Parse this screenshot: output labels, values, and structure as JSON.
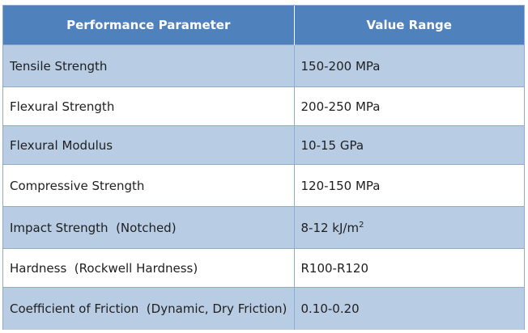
{
  "table": {
    "headers": {
      "parameter": "Performance Parameter",
      "value": "Value Range"
    },
    "rows": [
      {
        "parameter": "Tensile Strength",
        "value": "150-200 MPa"
      },
      {
        "parameter": "Flexural Strength",
        "value": "200-250 MPa"
      },
      {
        "parameter": "Flexural Modulus",
        "value": "10-15 GPa"
      },
      {
        "parameter": "Compressive Strength",
        "value": "120-150 MPa"
      },
      {
        "parameter": "Impact Strength  (Notched)",
        "value": "8-12 kJ/m",
        "value_sup": "2"
      },
      {
        "parameter": "Hardness  (Rockwell Hardness)",
        "value": "R100-R120"
      },
      {
        "parameter": "Coefficient of Friction  (Dynamic, Dry Friction)",
        "value": "0.10-0.20"
      }
    ]
  },
  "colors": {
    "header_bg": "#4f81bd",
    "band_bg": "#b8cce4",
    "border": "#8eaadb"
  }
}
